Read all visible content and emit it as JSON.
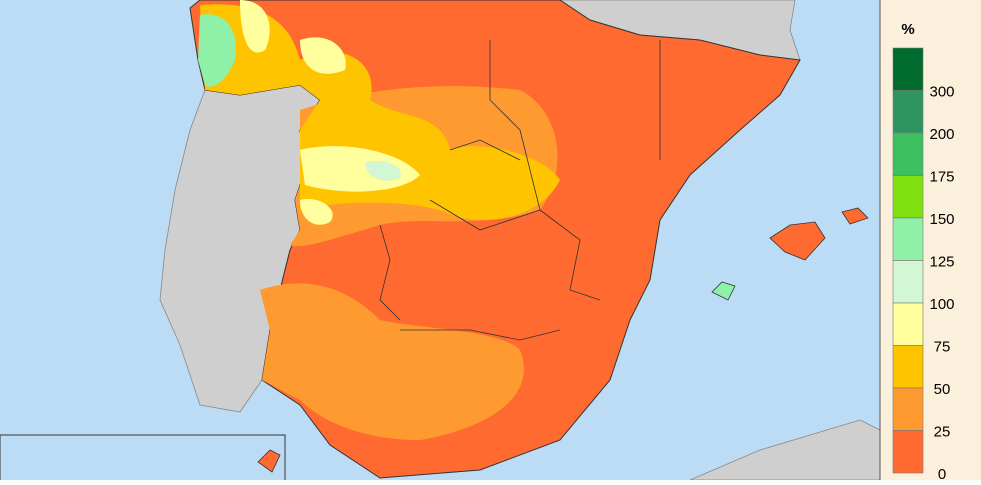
{
  "legend": {
    "title": "%",
    "swatches": [
      "#006b2d",
      "#2e9460",
      "#3cc060",
      "#80e010",
      "#8ff0a8",
      "#d2f7d2",
      "#ffff9e",
      "#ffc400",
      "#ff9a30",
      "#ff6a30"
    ],
    "labels": [
      "300",
      "200",
      "175",
      "150",
      "125",
      "100",
      "75",
      "50",
      "25",
      "0"
    ]
  }
}
